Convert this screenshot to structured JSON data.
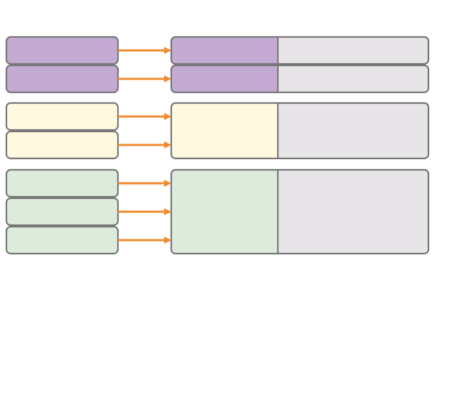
{
  "colors": {
    "purple": "#c3abd3",
    "yellow": "#fff9e0",
    "green": "#dcebdc",
    "gray": "#e7e5e7",
    "border": "#777777",
    "arrow": "#ef8a2e",
    "background": "#ffffff"
  },
  "groups": [
    {
      "name": "purple",
      "color_key": "purple",
      "input_count": 2,
      "target_rows": 2
    },
    {
      "name": "yellow",
      "color_key": "yellow",
      "input_count": 2,
      "target_rows": 1
    },
    {
      "name": "green",
      "color_key": "green",
      "input_count": 3,
      "target_rows": 1
    }
  ]
}
